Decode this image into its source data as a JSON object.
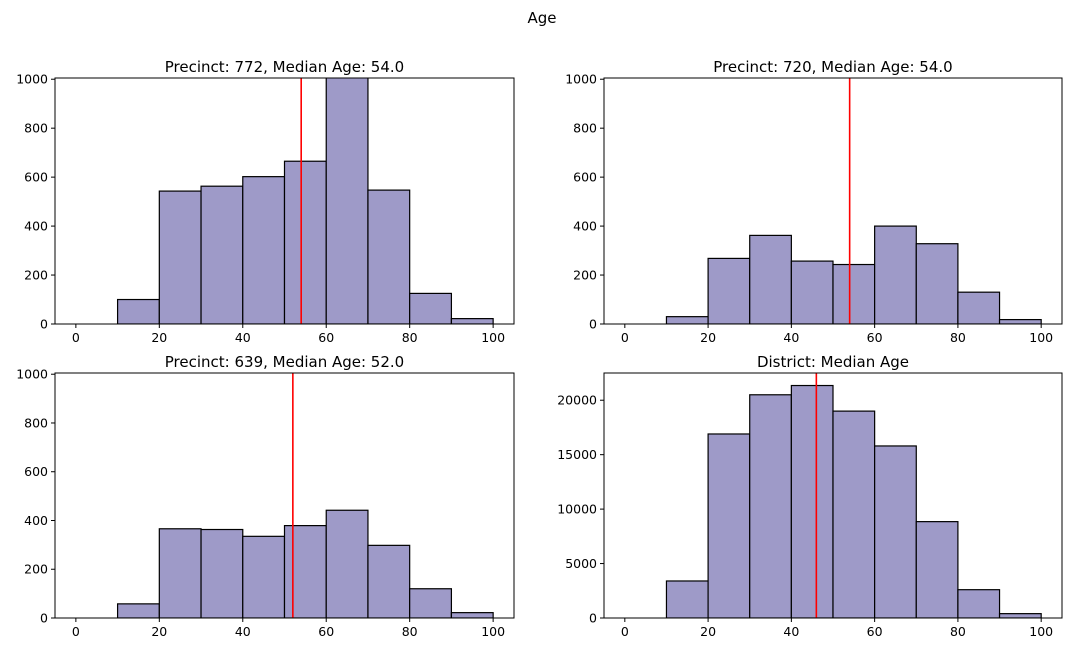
{
  "suptitle": "Age",
  "chart_data": [
    {
      "type": "bar",
      "title": "Precinct: 772, Median Age: 54.0",
      "bin_edges": [
        0,
        10,
        20,
        30,
        40,
        50,
        60,
        70,
        80,
        90,
        100
      ],
      "values": [
        0,
        100,
        543,
        563,
        602,
        665,
        1010,
        547,
        125,
        22
      ],
      "median": 54.0,
      "xlim": [
        -5,
        105
      ],
      "ylim": [
        0,
        1005
      ],
      "xticks": [
        0,
        20,
        40,
        60,
        80,
        100
      ],
      "yticks": [
        0,
        200,
        400,
        600,
        800,
        1000
      ],
      "bar_color": "#9e9ac8",
      "median_color": "#ff0000"
    },
    {
      "type": "bar",
      "title": "Precinct: 720, Median Age: 54.0",
      "bin_edges": [
        0,
        10,
        20,
        30,
        40,
        50,
        60,
        70,
        80,
        90,
        100
      ],
      "values": [
        0,
        30,
        268,
        362,
        257,
        243,
        400,
        328,
        130,
        18
      ],
      "median": 54.0,
      "xlim": [
        -5,
        105
      ],
      "ylim": [
        0,
        1005
      ],
      "xticks": [
        0,
        20,
        40,
        60,
        80,
        100
      ],
      "yticks": [
        0,
        200,
        400,
        600,
        800,
        1000
      ],
      "bar_color": "#9e9ac8",
      "median_color": "#ff0000"
    },
    {
      "type": "bar",
      "title": "Precinct: 639, Median Age: 52.0",
      "bin_edges": [
        0,
        10,
        20,
        30,
        40,
        50,
        60,
        70,
        80,
        90,
        100
      ],
      "values": [
        0,
        58,
        366,
        363,
        335,
        379,
        442,
        298,
        120,
        22
      ],
      "median": 52.0,
      "xlim": [
        -5,
        105
      ],
      "ylim": [
        0,
        1005
      ],
      "xticks": [
        0,
        20,
        40,
        60,
        80,
        100
      ],
      "yticks": [
        0,
        200,
        400,
        600,
        800,
        1000
      ],
      "bar_color": "#9e9ac8",
      "median_color": "#ff0000"
    },
    {
      "type": "bar",
      "title": "District: Median Age",
      "bin_edges": [
        0,
        10,
        20,
        30,
        40,
        50,
        60,
        70,
        80,
        90,
        100
      ],
      "values": [
        0,
        3400,
        16900,
        20500,
        21350,
        19000,
        15800,
        8850,
        2600,
        400
      ],
      "median": 46.0,
      "xlim": [
        -5,
        105
      ],
      "ylim": [
        0,
        22500
      ],
      "xticks": [
        0,
        20,
        40,
        60,
        80,
        100
      ],
      "yticks": [
        0,
        5000,
        10000,
        15000,
        20000
      ],
      "bar_color": "#9e9ac8",
      "median_color": "#ff0000"
    }
  ]
}
